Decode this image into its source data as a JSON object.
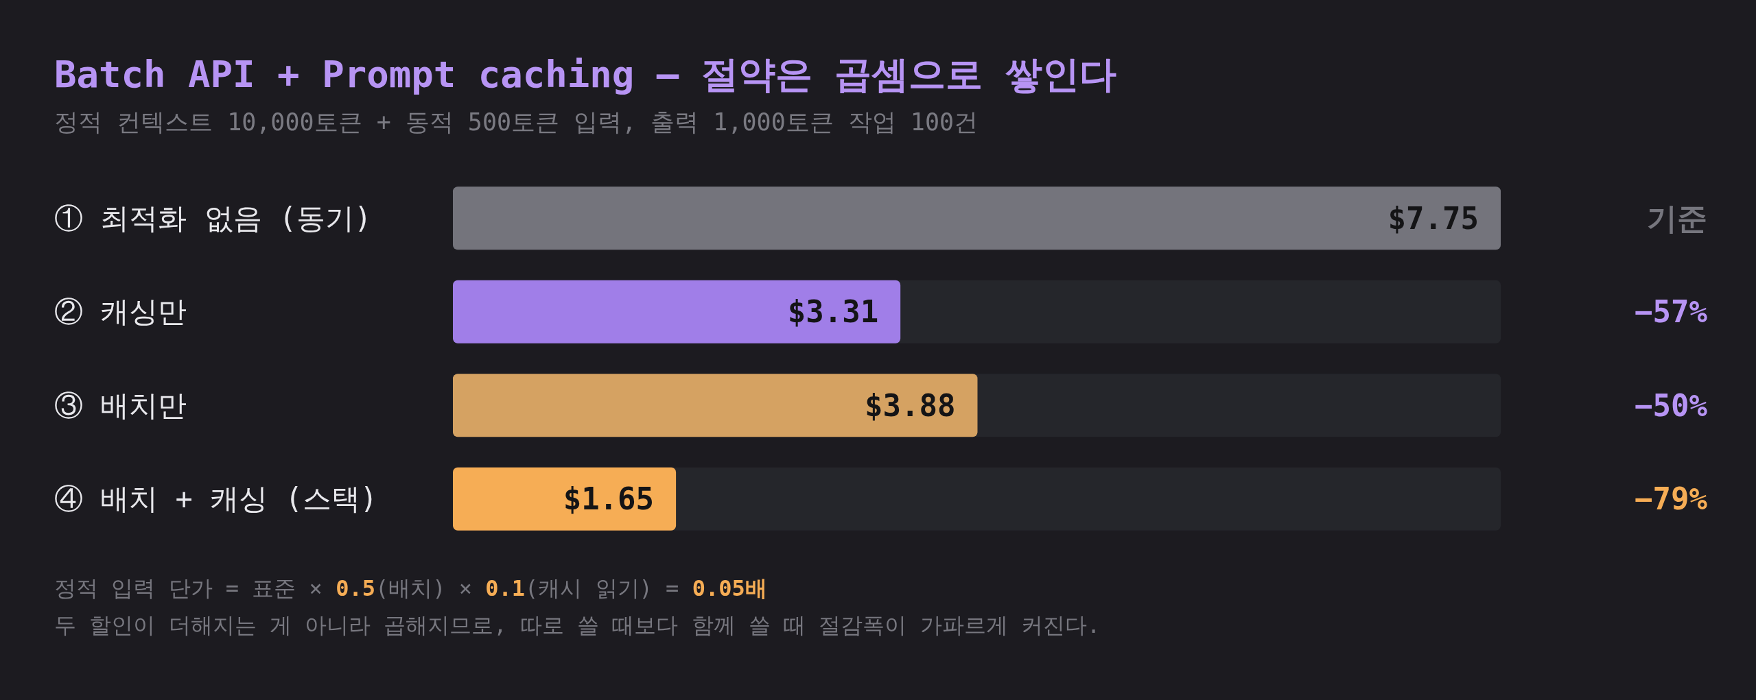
{
  "chart_data": {
    "type": "bar",
    "orientation": "horizontal",
    "title": "Batch API + Prompt caching — 절약은 곱셈으로 쌓인다",
    "subtitle": "정적 컨텍스트 10,000토큰 + 동적 500토큰 입력, 출력 1,000토큰 작업 100건",
    "categories": [
      "① 최적화 없음 (동기)",
      "② 캐싱만",
      "③ 배치만",
      "④ 배치 + 캐싱 (스택)"
    ],
    "values": [
      7.75,
      3.31,
      3.88,
      1.65
    ],
    "colors": [
      "#74747c",
      "#a07ee8",
      "#d5a262",
      "#f6ad55"
    ],
    "value_labels": [
      "$7.75",
      "$3.31",
      "$3.88",
      "$1.65"
    ],
    "xlim": [
      0,
      7.75
    ],
    "tick_labels": "y",
    "annotations": [
      "기준",
      "−57%",
      "−50%",
      "−79%",
      "정적 입력 단가 = 표준 × 0.5(배치) × 0.1(캐시 읽기) = 0.05배",
      "두 할인이 더해지는 게 아니라 곱해지므로, 따로 쓸 때보다 함께 쓸 때 절감폭이 가파르게 커진다."
    ]
  }
}
